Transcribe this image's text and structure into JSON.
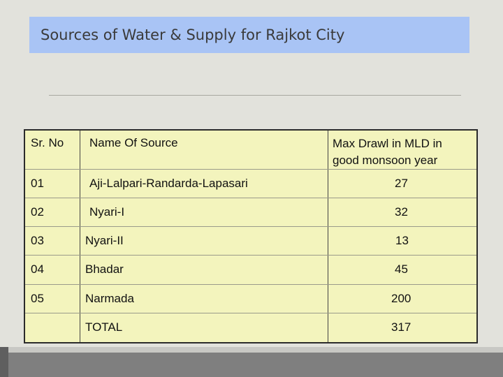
{
  "slide": {
    "title": "Sources of Water & Supply for Rajkot City"
  },
  "table": {
    "headers": {
      "sr_no": "Sr. No",
      "name": "Name Of Source",
      "max_drawl_line1": "Max Drawl in MLD in",
      "max_drawl_line2": "good monsoon year"
    },
    "rows": [
      {
        "sr": "01",
        "name": "Aji-Lalpari-Randarda-Lapasari",
        "value": "27"
      },
      {
        "sr": "02",
        "name": "Nyari-I",
        "value": "32"
      },
      {
        "sr": "03",
        "name": "Nyari-II",
        "value": "13"
      },
      {
        "sr": "04",
        "name": "Bhadar",
        "value": "45"
      },
      {
        "sr": "05",
        "name": "Narmada",
        "value": "200"
      }
    ],
    "total": {
      "label": "TOTAL",
      "value": "317"
    }
  }
}
